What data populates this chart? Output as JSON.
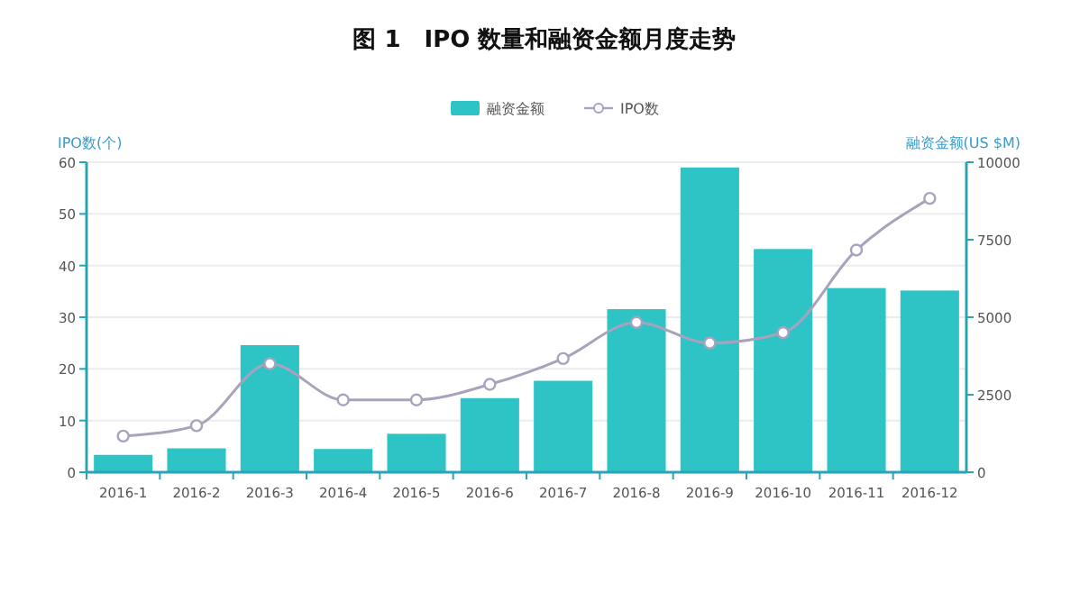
{
  "chart_data": {
    "type": "bar",
    "title": "图 1　IPO 数量和融资金额月度走势",
    "ylabel": "IPO数(个)",
    "y2label": "融资金额(US $M)",
    "categories": [
      "2016-1",
      "2016-2",
      "2016-3",
      "2016-4",
      "2016-5",
      "2016-6",
      "2016-7",
      "2016-8",
      "2016-9",
      "2016-10",
      "2016-11",
      "2016-12"
    ],
    "series": [
      {
        "name": "融资金额",
        "axis": "y2",
        "color": "#2ec4c6",
        "values": [
          560,
          770,
          4100,
          750,
          1240,
          2390,
          2950,
          5260,
          9830,
          7200,
          5940,
          5860
        ]
      },
      {
        "name": "IPO数",
        "type": "line",
        "color": "#a8a2bd",
        "values": [
          7,
          9,
          21,
          14,
          14,
          17,
          22,
          29,
          25,
          27,
          43,
          53
        ]
      }
    ],
    "ylim": [
      0,
      60
    ],
    "yticks": [
      0,
      10,
      20,
      30,
      40,
      50,
      60
    ],
    "y2lim": [
      0,
      10000
    ],
    "y2ticks": [
      0,
      2500,
      5000,
      7500,
      10000
    ],
    "grid": "y",
    "legend": "top",
    "marker": "circle"
  }
}
